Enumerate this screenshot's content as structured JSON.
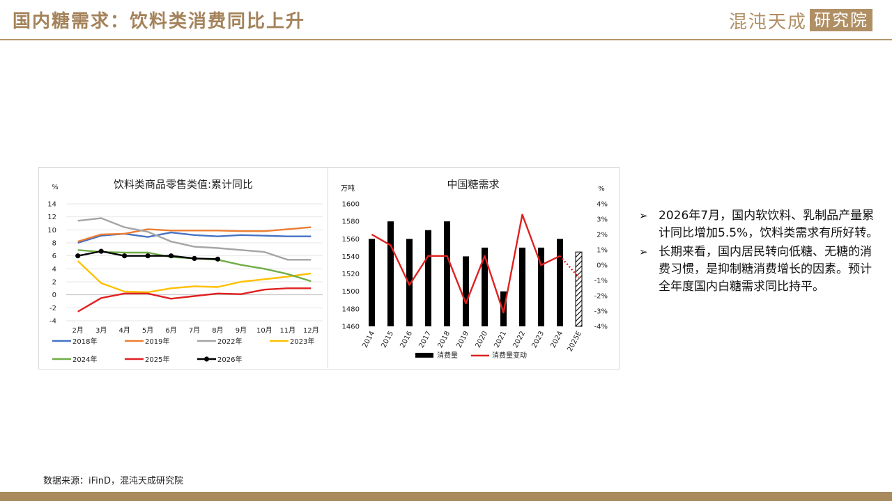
{
  "header": {
    "title": "国内糖需求：饮料类消费同比上升",
    "logo_text": "混沌天成",
    "logo_box_text": "研究院"
  },
  "bullets": [
    "2026年7月，国内软饮料、乳制品产量累计同比增加5.5%，饮料类需求有所好转。",
    "长期来看，国内居民转向低糖、无糖的消费习惯，是抑制糖消费增长的因素。预计全年度国内白糖需求同比持平。"
  ],
  "footer": {
    "source": "数据来源：iFinD，混沌天成研究院"
  },
  "chart_data": [
    {
      "type": "line",
      "title": "饮料类商品零售类值:累计同比",
      "ylabel": "%",
      "ylim": [
        -4,
        14
      ],
      "yticks": [
        "-4",
        "-2",
        "0",
        "2",
        "4",
        "6",
        "8",
        "10",
        "12",
        "14"
      ],
      "categories": [
        "2月",
        "3月",
        "4月",
        "5月",
        "6月",
        "7月",
        "8月",
        "9月",
        "10月",
        "11月",
        "12月"
      ],
      "legend_position": "bottom",
      "series": [
        {
          "name": "2018年",
          "color": "#4472c4",
          "values": [
            8.0,
            9.1,
            9.4,
            8.9,
            9.6,
            9.2,
            9.0,
            9.2,
            9.1,
            9.0,
            9.0
          ]
        },
        {
          "name": "2019年",
          "color": "#ed7d31",
          "values": [
            8.2,
            9.3,
            9.4,
            10.1,
            9.9,
            9.9,
            9.9,
            9.8,
            9.8,
            10.1,
            10.4
          ]
        },
        {
          "name": "2022年",
          "color": "#a5a5a5",
          "values": [
            11.4,
            11.8,
            10.4,
            9.7,
            8.2,
            7.4,
            7.2,
            6.9,
            6.6,
            5.4,
            5.4
          ]
        },
        {
          "name": "2023年",
          "color": "#ffc000",
          "values": [
            5.2,
            1.8,
            0.5,
            0.4,
            1.0,
            1.3,
            1.2,
            2.0,
            2.4,
            2.8,
            3.3
          ]
        },
        {
          "name": "2024年",
          "color": "#70ad47",
          "values": [
            6.9,
            6.6,
            6.5,
            6.5,
            5.8,
            5.6,
            5.4,
            4.6,
            4.0,
            3.2,
            2.1
          ]
        },
        {
          "name": "2025年",
          "color": "#e02020",
          "values": [
            -2.6,
            -0.5,
            0.2,
            0.2,
            -0.6,
            -0.2,
            0.2,
            0.1,
            0.8,
            1.0,
            1.0
          ]
        },
        {
          "name": "2026年",
          "color": "#000000",
          "markers": true,
          "values": [
            6.0,
            6.7,
            6.0,
            6.0,
            6.0,
            5.6,
            5.5,
            null,
            null,
            null,
            null
          ]
        }
      ]
    },
    {
      "type": "bar",
      "title": "中国糖需求",
      "ylabel": "万吨",
      "y2label": "%",
      "ylim": [
        1460,
        1600
      ],
      "yticks": [
        "1460",
        "1480",
        "1500",
        "1520",
        "1540",
        "1560",
        "1580",
        "1600"
      ],
      "y2lim": [
        -4,
        4
      ],
      "y2ticks": [
        "-4%",
        "-3%",
        "-2%",
        "-1%",
        "0%",
        "1%",
        "2%",
        "3%",
        "4%"
      ],
      "categories": [
        "2014",
        "2015",
        "2016",
        "2017",
        "2018",
        "2019",
        "2020",
        "2021",
        "2022",
        "2023",
        "2024",
        "2025E"
      ],
      "legend_position": "bottom",
      "series": [
        {
          "name": "消费量",
          "type": "bar",
          "color": "#000000",
          "axis": "left",
          "values": [
            1560,
            1580,
            1560,
            1570,
            1580,
            1540,
            1550,
            1500,
            1550,
            1550,
            1560,
            1545
          ],
          "hatched_last": true
        },
        {
          "name": "消费量变动",
          "type": "line",
          "color": "#e02020",
          "axis": "right",
          "values": [
            2.0,
            1.3,
            -1.3,
            0.6,
            0.6,
            -2.5,
            0.6,
            -3.1,
            3.3,
            0.0,
            0.6,
            -0.8
          ],
          "dotted_last": true
        }
      ]
    }
  ]
}
